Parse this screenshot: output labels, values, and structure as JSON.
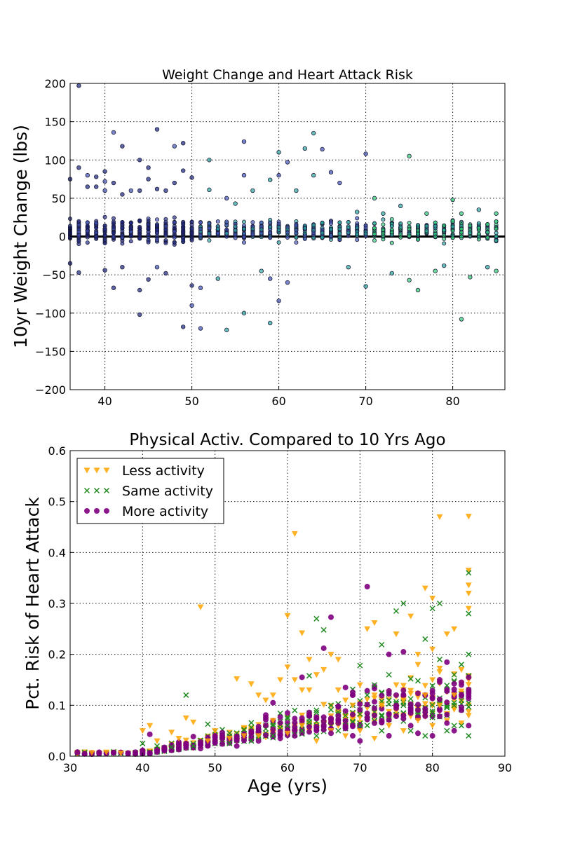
{
  "chart_data": [
    {
      "type": "scatter",
      "title": "Weight Change and Heart Attack Risk",
      "xlabel": "",
      "ylabel": "10yr Weight Change (lbs)",
      "xlim": [
        36,
        86
      ],
      "ylim": [
        -200,
        200
      ],
      "xticks": [
        40,
        50,
        60,
        70,
        80
      ],
      "yticks": [
        -200,
        -150,
        -100,
        -50,
        0,
        50,
        100,
        150,
        200
      ],
      "grid": true,
      "reference_line_y": 0,
      "color_scale": [
        "#1a237e",
        "#3f51b5",
        "#26a69a",
        "#2ecc71"
      ],
      "notes": "Points colored by age on a blue-to-green scale; dense vertical bands at every integer age.",
      "series": [
        {
          "values": [
            [
              37,
              197
            ],
            [
              37,
              90
            ],
            [
              36,
              75
            ],
            [
              36,
              -35
            ],
            [
              37,
              -47
            ],
            [
              38,
              80
            ],
            [
              38,
              65
            ],
            [
              39,
              78
            ],
            [
              39,
              65
            ],
            [
              40,
              85
            ],
            [
              40,
              72
            ],
            [
              40,
              60
            ],
            [
              40,
              -44
            ],
            [
              41,
              136
            ],
            [
              41,
              70
            ],
            [
              41,
              -67
            ],
            [
              42,
              118
            ],
            [
              42,
              55
            ],
            [
              42,
              -40
            ],
            [
              43,
              60
            ],
            [
              44,
              100
            ],
            [
              44,
              60
            ],
            [
              44,
              -70
            ],
            [
              44,
              -102
            ],
            [
              45,
              90
            ],
            [
              45,
              75
            ],
            [
              45,
              -56
            ],
            [
              46,
              140
            ],
            [
              46,
              62
            ],
            [
              46,
              -40
            ],
            [
              47,
              60
            ],
            [
              47,
              -48
            ],
            [
              48,
              118
            ],
            [
              48,
              70
            ],
            [
              49,
              122
            ],
            [
              49,
              86
            ],
            [
              49,
              -118
            ],
            [
              50,
              77
            ],
            [
              50,
              -64
            ],
            [
              50,
              -90
            ],
            [
              51,
              -67
            ],
            [
              51,
              -120
            ],
            [
              52,
              100
            ],
            [
              52,
              61
            ],
            [
              53,
              -55
            ],
            [
              54,
              -122
            ],
            [
              54,
              50
            ],
            [
              55,
              43
            ],
            [
              56,
              124
            ],
            [
              56,
              80
            ],
            [
              56,
              -100
            ],
            [
              57,
              60
            ],
            [
              58,
              -45
            ],
            [
              59,
              74
            ],
            [
              59,
              -113
            ],
            [
              59,
              -55
            ],
            [
              60,
              110
            ],
            [
              60,
              80
            ],
            [
              60,
              -84
            ],
            [
              61,
              97
            ],
            [
              61,
              -60
            ],
            [
              62,
              60
            ],
            [
              63,
              115
            ],
            [
              64,
              135
            ],
            [
              64,
              80
            ],
            [
              65,
              114
            ],
            [
              66,
              84
            ],
            [
              67,
              70
            ],
            [
              68,
              -40
            ],
            [
              69,
              32
            ],
            [
              70,
              108
            ],
            [
              70,
              -65
            ],
            [
              71,
              50
            ],
            [
              72,
              30
            ],
            [
              73,
              -48
            ],
            [
              74,
              40
            ],
            [
              75,
              105
            ],
            [
              75,
              -57
            ],
            [
              76,
              -70
            ],
            [
              77,
              30
            ],
            [
              78,
              -45
            ],
            [
              79,
              -38
            ],
            [
              80,
              48
            ],
            [
              80,
              20
            ],
            [
              81,
              30
            ],
            [
              81,
              -108
            ],
            [
              82,
              -53
            ],
            [
              83,
              35
            ],
            [
              84,
              -40
            ],
            [
              85,
              30
            ],
            [
              85,
              -45
            ]
          ]
        }
      ]
    },
    {
      "type": "scatter",
      "title": "Physical Activ. Compared to 10 Yrs Ago",
      "xlabel": "Age (yrs)",
      "ylabel": "Pct. Risk of Heart Attack",
      "xlim": [
        30,
        90
      ],
      "ylim": [
        0.0,
        0.6
      ],
      "xticks": [
        30,
        40,
        50,
        60,
        70,
        80,
        90
      ],
      "yticks": [
        "0.0",
        "0.1",
        "0.2",
        "0.3",
        "0.4",
        "0.5",
        "0.6"
      ],
      "grid": true,
      "legend_position": "top-left",
      "series": [
        {
          "name": "Less activity",
          "color": "#ffa500",
          "marker": "triangle-down",
          "values": [
            [
              48,
              0.293
            ],
            [
              60,
              0.276
            ],
            [
              61,
              0.437
            ],
            [
              62,
              0.242
            ],
            [
              63,
              0.19
            ],
            [
              66,
              0.2
            ],
            [
              67,
              0.19
            ],
            [
              71,
              0.25
            ],
            [
              72,
              0.262
            ],
            [
              75,
              0.24
            ],
            [
              77,
              0.275
            ],
            [
              78,
              0.2
            ],
            [
              79,
              0.33
            ],
            [
              80,
              0.31
            ],
            [
              80,
              0.21
            ],
            [
              81,
              0.47
            ],
            [
              82,
              0.24
            ],
            [
              83,
              0.25
            ],
            [
              85,
              0.471
            ],
            [
              85,
              0.365
            ],
            [
              85,
              0.336
            ],
            [
              85,
              0.32
            ],
            [
              85,
              0.29
            ],
            [
              41,
              0.06
            ],
            [
              44,
              0.047
            ],
            [
              46,
              0.075
            ],
            [
              47,
              0.067
            ],
            [
              53,
              0.152
            ],
            [
              55,
              0.142
            ],
            [
              56,
              0.12
            ],
            [
              57,
              0.11
            ],
            [
              58,
              0.12
            ],
            [
              59,
              0.15
            ],
            [
              60,
              0.175
            ],
            [
              61,
              0.15
            ],
            [
              62,
              0.13
            ],
            [
              63,
              0.13
            ],
            [
              64,
              0.16
            ],
            [
              65,
              0.17
            ],
            [
              67,
              0.13
            ],
            [
              68,
              0.11
            ],
            [
              69,
              0.1
            ],
            [
              70,
              0.14
            ],
            [
              72,
              0.12
            ],
            [
              73,
              0.1
            ],
            [
              75,
              0.14
            ],
            [
              76,
              0.11
            ],
            [
              78,
              0.18
            ],
            [
              79,
              0.12
            ],
            [
              80,
              0.15
            ],
            [
              81,
              0.1
            ],
            [
              83,
              0.12
            ],
            [
              84,
              0.17
            ],
            [
              85,
              0.15
            ],
            [
              40,
              0.05
            ],
            [
              42,
              0.03
            ],
            [
              45,
              0.035
            ],
            [
              50,
              0.05
            ],
            [
              54,
              0.04
            ],
            [
              58,
              0.07
            ],
            [
              62,
              0.06
            ],
            [
              66,
              0.05
            ],
            [
              70,
              0.05
            ],
            [
              74,
              0.06
            ],
            [
              78,
              0.07
            ],
            [
              82,
              0.07
            ],
            [
              85,
              0.08
            ],
            [
              31,
              0.005
            ],
            [
              33,
              0.007
            ],
            [
              35,
              0.008
            ],
            [
              37,
              0.006
            ],
            [
              49,
              0.03
            ],
            [
              52,
              0.035
            ],
            [
              56,
              0.04
            ],
            [
              60,
              0.045
            ],
            [
              64,
              0.03
            ],
            [
              68,
              0.04
            ],
            [
              72,
              0.035
            ],
            [
              76,
              0.05
            ],
            [
              80,
              0.06
            ],
            [
              84,
              0.065
            ]
          ]
        },
        {
          "name": "Same activity",
          "color": "#228b22",
          "marker": "x",
          "values": [
            [
              46,
              0.12
            ],
            [
              49,
              0.063
            ],
            [
              64,
              0.27
            ],
            [
              65,
              0.248
            ],
            [
              70,
              0.178
            ],
            [
              73,
              0.219
            ],
            [
              75,
              0.285
            ],
            [
              76,
              0.3
            ],
            [
              77,
              0.152
            ],
            [
              78,
              0.148
            ],
            [
              79,
              0.23
            ],
            [
              80,
              0.29
            ],
            [
              81,
              0.3
            ],
            [
              81,
              0.19
            ],
            [
              82,
              0.139
            ],
            [
              83,
              0.16
            ],
            [
              84,
              0.18
            ],
            [
              85,
              0.36
            ],
            [
              85,
              0.28
            ],
            [
              85,
              0.2
            ],
            [
              61,
              0.09
            ],
            [
              63,
              0.158
            ],
            [
              66,
              0.1
            ],
            [
              68,
              0.08
            ],
            [
              71,
              0.12
            ],
            [
              72,
              0.14
            ],
            [
              74,
              0.16
            ],
            [
              76,
              0.1
            ],
            [
              80,
              0.08
            ],
            [
              83,
              0.06
            ],
            [
              85,
              0.04
            ],
            [
              40,
              0.025
            ],
            [
              42,
              0.02
            ],
            [
              44,
              0.018
            ],
            [
              47,
              0.02
            ],
            [
              52,
              0.025
            ],
            [
              55,
              0.03
            ],
            [
              58,
              0.04
            ],
            [
              60,
              0.06
            ],
            [
              62,
              0.05
            ],
            [
              64,
              0.04
            ],
            [
              67,
              0.05
            ],
            [
              70,
              0.06
            ],
            [
              73,
              0.05
            ],
            [
              77,
              0.05
            ],
            [
              79,
              0.04
            ],
            [
              82,
              0.05
            ],
            [
              84,
              0.06
            ]
          ]
        },
        {
          "name": "More activity",
          "color": "#800080",
          "marker": "circle",
          "values": [
            [
              71,
              0.333
            ],
            [
              66,
              0.273
            ],
            [
              65,
              0.212
            ],
            [
              62,
              0.155
            ],
            [
              68,
              0.135
            ],
            [
              69,
              0.12
            ],
            [
              74,
              0.2
            ],
            [
              76,
              0.205
            ],
            [
              80,
              0.115
            ],
            [
              81,
              0.15
            ],
            [
              84,
              0.14
            ],
            [
              85,
              0.155
            ],
            [
              58,
              0.105
            ],
            [
              60,
              0.085
            ],
            [
              63,
              0.08
            ],
            [
              67,
              0.07
            ],
            [
              72,
              0.08
            ],
            [
              73,
              0.07
            ],
            [
              77,
              0.06
            ],
            [
              82,
              0.065
            ],
            [
              41,
              0.043
            ],
            [
              43,
              0.012
            ],
            [
              45,
              0.013
            ],
            [
              48,
              0.015
            ],
            [
              50,
              0.04
            ],
            [
              53,
              0.02
            ],
            [
              56,
              0.03
            ],
            [
              59,
              0.035
            ],
            [
              61,
              0.04
            ],
            [
              64,
              0.05
            ],
            [
              66,
              0.045
            ],
            [
              69,
              0.04
            ],
            [
              70,
              0.03
            ],
            [
              74,
              0.04
            ],
            [
              78,
              0.045
            ],
            [
              80,
              0.04
            ],
            [
              83,
              0.05
            ],
            [
              85,
              0.06
            ],
            [
              31,
              0.008
            ],
            [
              34,
              0.006
            ],
            [
              36,
              0.007
            ],
            [
              38,
              0.005
            ],
            [
              40,
              0.01
            ]
          ]
        }
      ]
    }
  ]
}
